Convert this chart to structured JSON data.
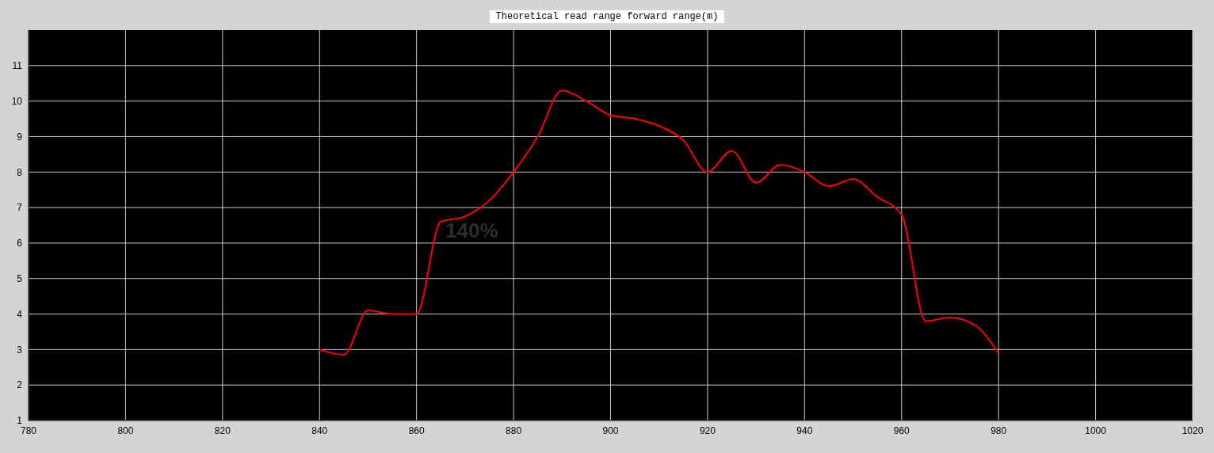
{
  "chart_data": {
    "type": "line",
    "title": "Theoretical read range forward range(m)",
    "x": [
      840,
      845,
      850,
      855,
      860,
      865,
      870,
      875,
      880,
      885,
      890,
      895,
      900,
      905,
      910,
      915,
      920,
      925,
      930,
      935,
      940,
      945,
      950,
      955,
      960,
      965,
      970,
      975,
      980
    ],
    "series": [
      {
        "color": "#ff0000",
        "values": [
          3.0,
          2.85,
          4.1,
          4.0,
          4.0,
          6.6,
          6.75,
          7.2,
          8.0,
          9.0,
          10.3,
          10.0,
          9.6,
          9.5,
          9.3,
          8.9,
          8.0,
          8.6,
          7.7,
          8.2,
          8.0,
          7.6,
          7.8,
          7.3,
          6.8,
          3.8,
          3.9,
          3.7,
          2.9
        ]
      }
    ],
    "xlim": [
      780,
      1020
    ],
    "xticks": [
      780,
      800,
      820,
      840,
      860,
      880,
      900,
      920,
      940,
      960,
      980,
      1000,
      1020
    ],
    "ylim": [
      1,
      12
    ],
    "yticks": [
      1,
      2,
      3,
      4,
      5,
      6,
      7,
      8,
      9,
      10,
      11
    ],
    "grid": true,
    "marker": "none",
    "line_style": "solid",
    "annotations": [
      "140%"
    ]
  }
}
